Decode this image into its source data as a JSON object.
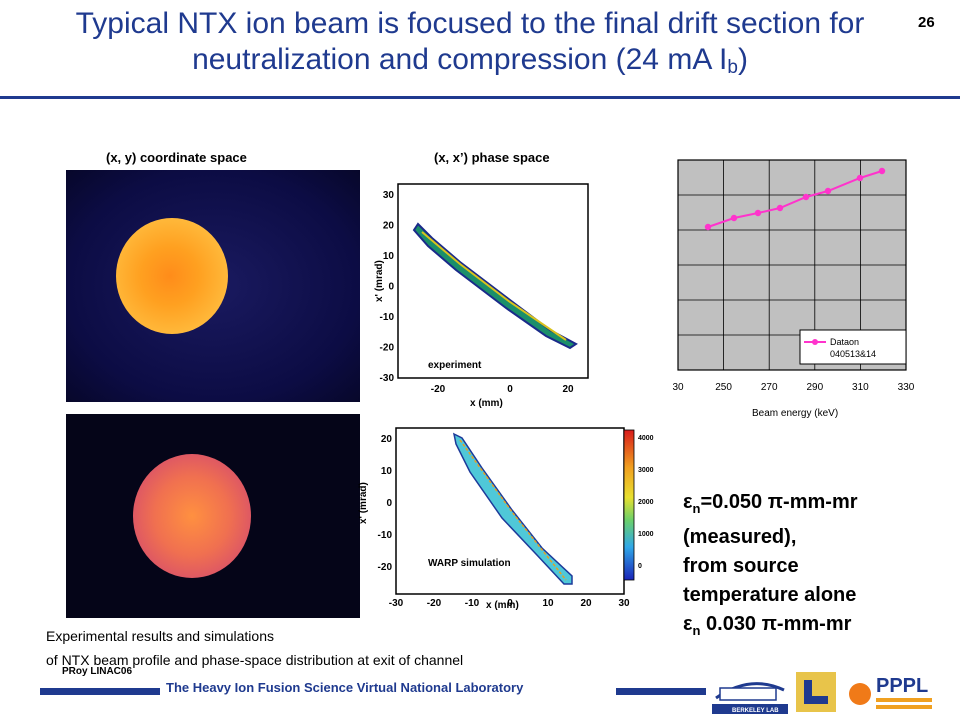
{
  "slide": {
    "title_main": "Typical NTX ion beam is focused to the final drift section for neutralization and compression (24 mA I",
    "title_sub": "b",
    "title_close": ")",
    "number": "26"
  },
  "panels": {
    "xy_label": "(x, y) coordinate space",
    "xxp_label": "(x, x’) phase space",
    "experiment_label": "experiment",
    "warp_label": "WARP simulation",
    "ylabel": "x' (mrad)",
    "xlabel": "x (mm)",
    "exp_xticks": [
      "-20",
      "0",
      "20"
    ],
    "exp_yticks": [
      "30",
      "20",
      "10",
      "0",
      "-10",
      "-20",
      "-30"
    ],
    "sim_xticks": [
      "-30",
      "-20",
      "-10",
      "0",
      "10",
      "20",
      "30"
    ],
    "sim_yticks": [
      "20",
      "10",
      "0",
      "-10",
      "-20"
    ],
    "colorbar_ticks": [
      "4000",
      "3000",
      "2000",
      "1000",
      "0"
    ]
  },
  "energy_plot": {
    "xlabel": "Beam energy (keV)",
    "xticks": [
      "30",
      "250",
      "270",
      "290",
      "310",
      "330"
    ],
    "legend_series": "Dataon",
    "legend_sub": "040513&14",
    "series_color": "#ff33cc"
  },
  "emittance": {
    "line1_sym": "ε",
    "line1_sub": "n",
    "line1_rest": "=0.050 π-mm-mr",
    "line2": "(measured),",
    "line3": "from source",
    "line4": "temperature alone",
    "line5_sym": "ε",
    "line5_sub": "n",
    "line5_rest": " 0.030 π-mm-mr"
  },
  "caption": {
    "line1": "Experimental results and simulations",
    "line2": "of NTX beam profile and phase-space distribution at exit of channel"
  },
  "author": "PRoy LINAC06",
  "footer": {
    "text": "The Heavy Ion Fusion Science Virtual National Laboratory",
    "logo_berkeley": "BERKELEY LAB",
    "logo_pppl": "PPPL"
  }
}
